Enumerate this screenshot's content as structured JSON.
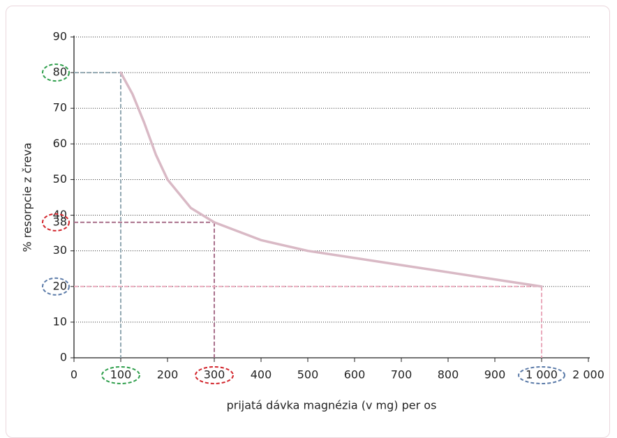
{
  "chart_data": {
    "type": "line",
    "y_label": "% resorpcie z čreva",
    "x_label": "prijatá dávka magnézia (v mg) per os",
    "x": [
      100,
      125,
      150,
      175,
      200,
      250,
      300,
      400,
      500,
      600,
      700,
      800,
      900,
      1000
    ],
    "series": [
      {
        "color": "#d9b9c5",
        "values": [
          80,
          74,
          66,
          57,
          50,
          42,
          38,
          33,
          30,
          28,
          26,
          24,
          22,
          20
        ]
      }
    ],
    "xticks": [
      0,
      100,
      200,
      300,
      400,
      500,
      600,
      700,
      800,
      900,
      {
        "value": 1000,
        "label": "1 000"
      },
      {
        "value": 2000,
        "label": "2 000"
      }
    ],
    "xlim": [
      0,
      2000
    ],
    "ylim": [
      0,
      90
    ],
    "yticks": [
      0,
      10,
      20,
      30,
      40,
      50,
      60,
      70,
      80,
      90
    ],
    "grid": true,
    "highlights": [
      {
        "x": 100,
        "y": 80,
        "color": "#2e9e4b",
        "line_color": "#93a9b3"
      },
      {
        "x": 300,
        "y": 38,
        "color": "#d2232a",
        "line_color": "#a9708c"
      },
      {
        "x": 1000,
        "y": 20,
        "color": "#5a7aa8",
        "line_color": "#eaa9bb"
      }
    ]
  }
}
